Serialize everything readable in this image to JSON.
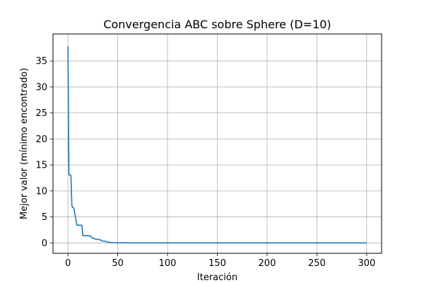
{
  "chart_data": {
    "type": "line",
    "title": "Convergencia ABC sobre Sphere (D=10)",
    "xlabel": "Iteración",
    "ylabel": "Mejor valor (mínimo encontrado)",
    "xlim": [
      -15,
      315
    ],
    "ylim": [
      -2,
      40.2
    ],
    "xticks": [
      0,
      50,
      100,
      150,
      200,
      250,
      300
    ],
    "yticks": [
      0,
      5,
      10,
      15,
      20,
      25,
      30,
      35
    ],
    "grid": true,
    "line_color": "#1f77b4",
    "series": [
      {
        "x": [
          0,
          1,
          2,
          3,
          4,
          5,
          6,
          7,
          8,
          9,
          10,
          11,
          12,
          13,
          14,
          15,
          16,
          17,
          18,
          19,
          20,
          21,
          22,
          23,
          24,
          25,
          26,
          27,
          28,
          29,
          30,
          31,
          32,
          33,
          34,
          35,
          36,
          37,
          38,
          39,
          40,
          41,
          42,
          43,
          44,
          45,
          46,
          47,
          48,
          49,
          50,
          52,
          55,
          60,
          65,
          70,
          80,
          100,
          150,
          200,
          250,
          300
        ],
        "y": [
          37.8,
          13.1,
          13.1,
          13.0,
          7.1,
          6.8,
          6.7,
          5.5,
          4.5,
          3.4,
          3.4,
          3.4,
          3.4,
          3.4,
          3.4,
          1.4,
          1.4,
          1.4,
          1.4,
          1.4,
          1.4,
          1.4,
          1.3,
          1.3,
          1.0,
          0.9,
          0.9,
          0.8,
          0.7,
          0.7,
          0.65,
          0.65,
          0.6,
          0.55,
          0.4,
          0.35,
          0.35,
          0.3,
          0.3,
          0.2,
          0.15,
          0.12,
          0.1,
          0.08,
          0.06,
          0.05,
          0.04,
          0.03,
          0.03,
          0.02,
          0.02,
          0.01,
          0.01,
          0.01,
          0.005,
          0.003,
          0.002,
          0.001,
          0.0005,
          0.0002,
          0.0001,
          0.0001
        ]
      }
    ]
  }
}
